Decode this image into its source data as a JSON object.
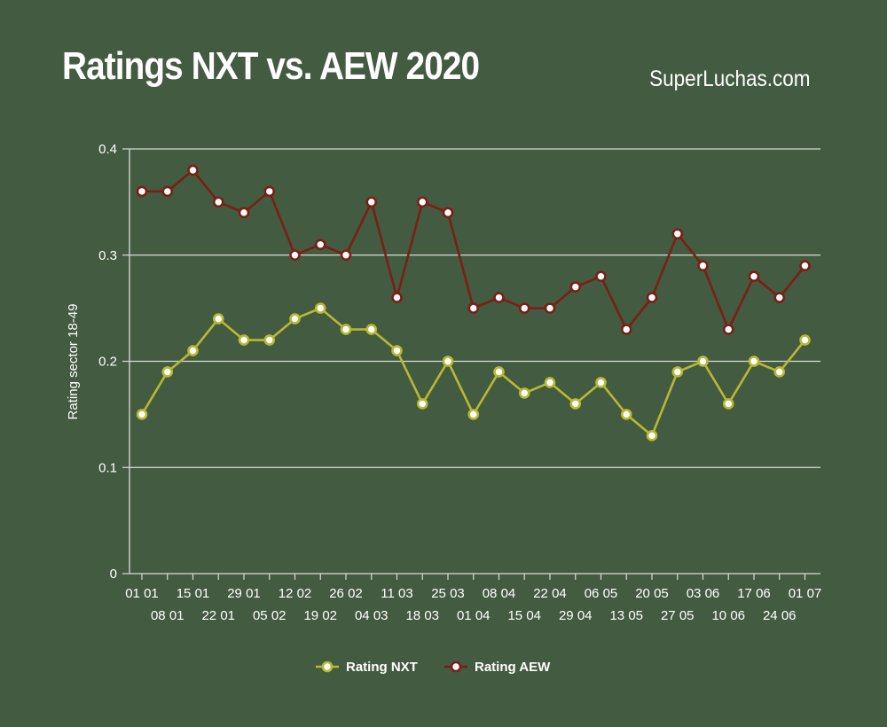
{
  "header": {
    "title": "Ratings NXT vs. AEW 2020",
    "source": "SuperLuchas.com"
  },
  "colors": {
    "background": "#435b41",
    "nxt": "#b9b833",
    "aew": "#7a1f17",
    "grid": "#d8ddd6",
    "marker_fill": "#ffffff"
  },
  "chart_data": {
    "type": "line",
    "title": "Ratings NXT vs. AEW 2020",
    "xlabel": "",
    "ylabel": "Rating sector 18-49",
    "ylim": [
      0,
      0.4
    ],
    "yticks": [
      "0",
      "0.1",
      "0.2",
      "0.3",
      "0.4"
    ],
    "grid": true,
    "legend_position": "bottom",
    "x": [
      "01 01",
      "08 01",
      "15 01",
      "22 01",
      "29 01",
      "05 02",
      "12 02",
      "19 02",
      "26 02",
      "04 03",
      "11 03",
      "18 03",
      "25 03",
      "01 04",
      "08 04",
      "15 04",
      "22 04",
      "29 04",
      "06 05",
      "13 05",
      "20 05",
      "27 05",
      "03 06",
      "10 06",
      "17 06",
      "24 06",
      "01 07"
    ],
    "series": [
      {
        "name": "Rating NXT",
        "color": "#b9b833",
        "values": [
          0.15,
          0.19,
          0.21,
          0.24,
          0.22,
          0.22,
          0.24,
          0.25,
          0.23,
          0.23,
          0.21,
          0.16,
          0.2,
          0.15,
          0.19,
          0.17,
          0.18,
          0.16,
          0.18,
          0.15,
          0.13,
          0.19,
          0.2,
          0.16,
          0.2,
          0.19,
          0.22
        ]
      },
      {
        "name": "Rating AEW",
        "color": "#7a1f17",
        "values": [
          0.36,
          0.36,
          0.38,
          0.35,
          0.34,
          0.36,
          0.3,
          0.31,
          0.3,
          0.35,
          0.26,
          0.35,
          0.34,
          0.25,
          0.26,
          0.25,
          0.25,
          0.27,
          0.28,
          0.23,
          0.26,
          0.32,
          0.29,
          0.23,
          0.28,
          0.26,
          0.29
        ]
      }
    ]
  }
}
